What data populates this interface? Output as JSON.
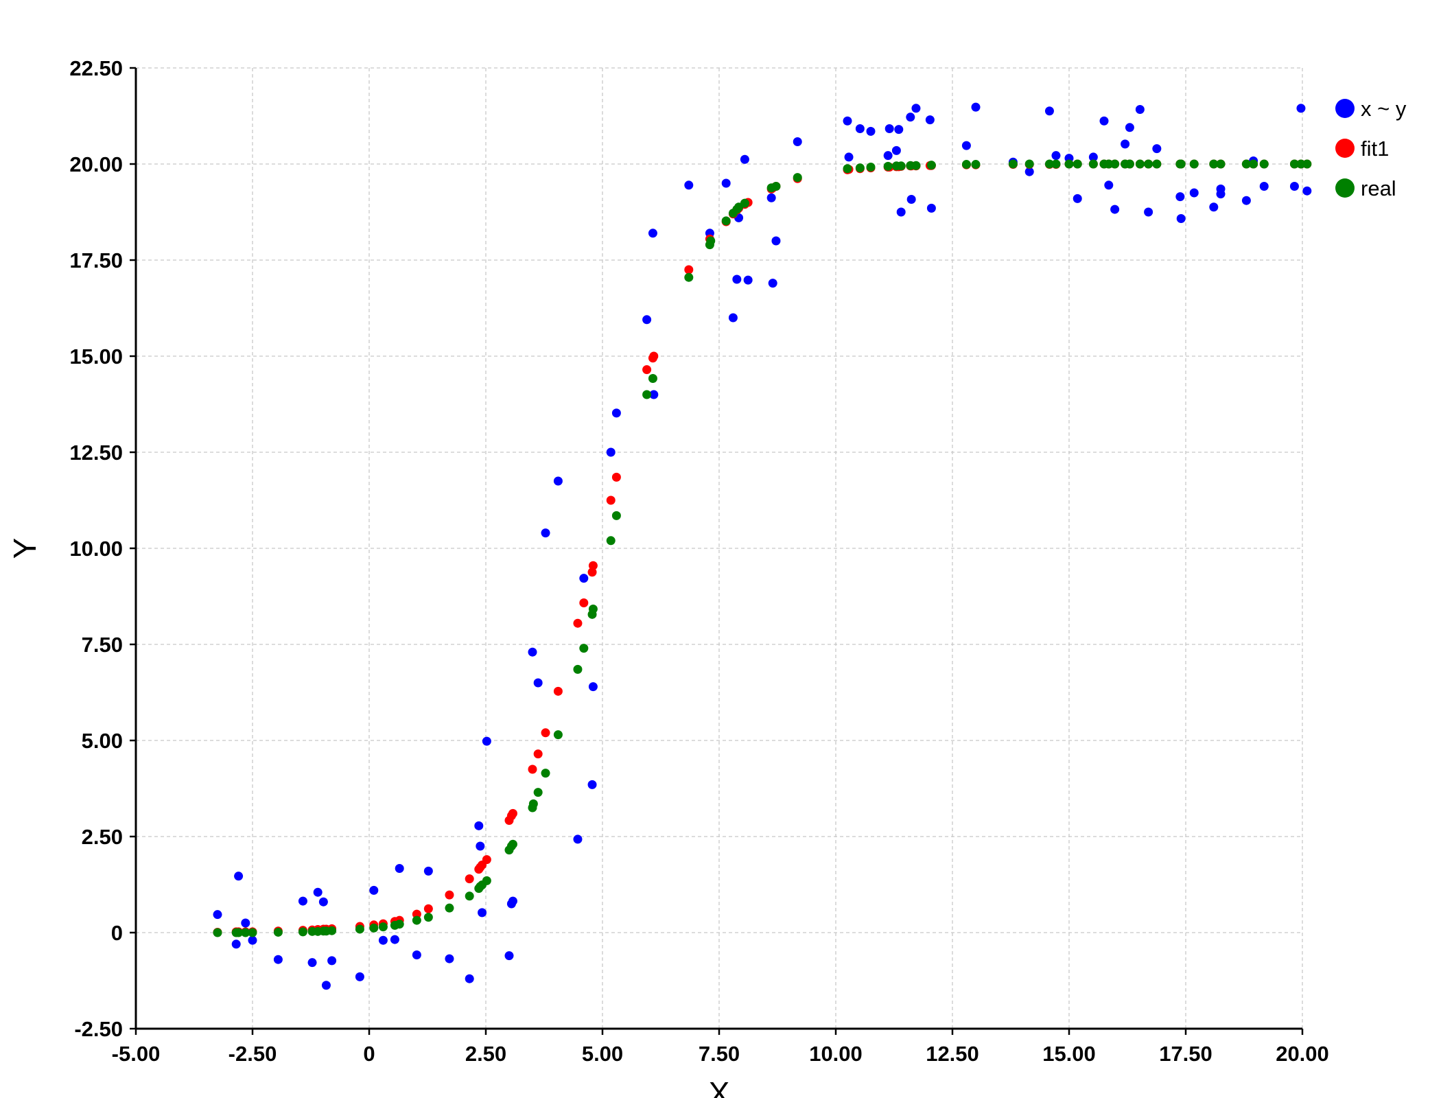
{
  "chart_data": {
    "type": "scatter",
    "title": "",
    "xlabel": "X",
    "ylabel": "Y",
    "xlim": [
      -5,
      20
    ],
    "ylim": [
      -2.5,
      22.5
    ],
    "xticks": [
      "-5.00",
      "-2.50",
      "0",
      "2.50",
      "5.00",
      "7.50",
      "10.00",
      "12.50",
      "15.00",
      "17.50",
      "20.00"
    ],
    "yticks": [
      "-2.50",
      "0",
      "2.50",
      "5.00",
      "7.50",
      "10.00",
      "12.50",
      "15.00",
      "17.50",
      "20.00",
      "22.50"
    ],
    "grid": true,
    "legend_position": "top-right, outside plot",
    "series": [
      {
        "name": "x ~ y",
        "color": "#0000ff",
        "points": [
          [
            -3.25,
            0.47
          ],
          [
            -2.85,
            -0.3
          ],
          [
            -2.8,
            1.47
          ],
          [
            -2.65,
            0.25
          ],
          [
            -2.5,
            -0.2
          ],
          [
            -1.95,
            -0.7
          ],
          [
            -1.42,
            0.82
          ],
          [
            -1.22,
            -0.78
          ],
          [
            -1.1,
            1.05
          ],
          [
            -0.98,
            0.8
          ],
          [
            -0.92,
            -1.37
          ],
          [
            -0.8,
            -0.73
          ],
          [
            -0.2,
            -1.15
          ],
          [
            0.1,
            1.1
          ],
          [
            0.3,
            -0.2
          ],
          [
            0.55,
            -0.18
          ],
          [
            0.65,
            1.67
          ],
          [
            1.02,
            -0.58
          ],
          [
            1.27,
            1.6
          ],
          [
            1.72,
            -0.68
          ],
          [
            2.15,
            -1.2
          ],
          [
            2.35,
            2.78
          ],
          [
            2.38,
            2.25
          ],
          [
            2.42,
            0.52
          ],
          [
            2.52,
            4.98
          ],
          [
            3.0,
            -0.6
          ],
          [
            3.05,
            0.75
          ],
          [
            3.08,
            0.82
          ],
          [
            3.5,
            7.3
          ],
          [
            3.62,
            6.5
          ],
          [
            3.78,
            10.4
          ],
          [
            4.05,
            11.75
          ],
          [
            4.47,
            2.43
          ],
          [
            4.6,
            9.22
          ],
          [
            4.78,
            3.85
          ],
          [
            4.8,
            6.4
          ],
          [
            5.18,
            12.5
          ],
          [
            5.3,
            13.52
          ],
          [
            5.95,
            15.95
          ],
          [
            6.1,
            14.0
          ],
          [
            6.08,
            18.2
          ],
          [
            6.85,
            19.45
          ],
          [
            7.3,
            18.2
          ],
          [
            7.65,
            19.5
          ],
          [
            7.8,
            16.0
          ],
          [
            7.88,
            17.0
          ],
          [
            7.92,
            18.6
          ],
          [
            8.05,
            20.12
          ],
          [
            8.12,
            16.98
          ],
          [
            8.62,
            19.12
          ],
          [
            8.65,
            16.9
          ],
          [
            8.72,
            18.0
          ],
          [
            9.18,
            20.58
          ],
          [
            10.25,
            21.12
          ],
          [
            10.28,
            20.18
          ],
          [
            10.52,
            20.92
          ],
          [
            10.75,
            20.85
          ],
          [
            11.15,
            20.92
          ],
          [
            11.12,
            20.22
          ],
          [
            11.35,
            20.9
          ],
          [
            11.3,
            20.35
          ],
          [
            11.4,
            18.75
          ],
          [
            11.6,
            21.22
          ],
          [
            11.62,
            19.08
          ],
          [
            11.72,
            21.45
          ],
          [
            12.02,
            21.15
          ],
          [
            12.05,
            18.85
          ],
          [
            12.8,
            20.48
          ],
          [
            13.0,
            21.48
          ],
          [
            13.8,
            20.05
          ],
          [
            14.15,
            19.8
          ],
          [
            14.58,
            21.38
          ],
          [
            14.72,
            20.22
          ],
          [
            15.0,
            20.15
          ],
          [
            15.18,
            19.1
          ],
          [
            15.52,
            20.18
          ],
          [
            15.75,
            21.12
          ],
          [
            15.85,
            19.45
          ],
          [
            15.98,
            18.82
          ],
          [
            16.2,
            20.52
          ],
          [
            16.3,
            20.95
          ],
          [
            16.52,
            21.42
          ],
          [
            16.7,
            18.75
          ],
          [
            16.88,
            20.4
          ],
          [
            17.38,
            19.15
          ],
          [
            17.4,
            18.58
          ],
          [
            17.68,
            19.25
          ],
          [
            18.1,
            18.88
          ],
          [
            18.25,
            19.22
          ],
          [
            18.25,
            19.35
          ],
          [
            18.8,
            19.05
          ],
          [
            18.95,
            20.08
          ],
          [
            19.18,
            19.42
          ],
          [
            19.83,
            19.42
          ],
          [
            19.97,
            21.45
          ],
          [
            20.1,
            19.3
          ]
        ]
      },
      {
        "name": "fit1",
        "color": "#ff0000",
        "points": [
          [
            -3.25,
            0.01
          ],
          [
            -2.85,
            0.02
          ],
          [
            -2.8,
            0.02
          ],
          [
            -2.65,
            0.02
          ],
          [
            -2.5,
            0.02
          ],
          [
            -1.95,
            0.04
          ],
          [
            -1.42,
            0.06
          ],
          [
            -1.22,
            0.07
          ],
          [
            -1.1,
            0.08
          ],
          [
            -0.98,
            0.09
          ],
          [
            -0.92,
            0.09
          ],
          [
            -0.8,
            0.1
          ],
          [
            -0.2,
            0.16
          ],
          [
            0.1,
            0.2
          ],
          [
            0.3,
            0.23
          ],
          [
            0.55,
            0.29
          ],
          [
            0.65,
            0.32
          ],
          [
            1.02,
            0.48
          ],
          [
            1.27,
            0.62
          ],
          [
            1.72,
            0.98
          ],
          [
            2.15,
            1.4
          ],
          [
            2.35,
            1.65
          ],
          [
            2.38,
            1.7
          ],
          [
            2.42,
            1.76
          ],
          [
            2.52,
            1.9
          ],
          [
            3.0,
            2.92
          ],
          [
            3.05,
            3.04
          ],
          [
            3.08,
            3.1
          ],
          [
            3.5,
            4.25
          ],
          [
            3.62,
            4.65
          ],
          [
            3.78,
            5.2
          ],
          [
            4.05,
            6.28
          ],
          [
            4.47,
            8.05
          ],
          [
            4.6,
            8.58
          ],
          [
            4.78,
            9.38
          ],
          [
            4.8,
            9.55
          ],
          [
            5.18,
            11.25
          ],
          [
            5.3,
            11.85
          ],
          [
            5.95,
            14.65
          ],
          [
            6.1,
            15.0
          ],
          [
            6.08,
            14.95
          ],
          [
            6.85,
            17.25
          ],
          [
            7.3,
            18.05
          ],
          [
            7.65,
            18.5
          ],
          [
            7.8,
            18.7
          ],
          [
            7.88,
            18.8
          ],
          [
            7.92,
            18.85
          ],
          [
            8.05,
            18.95
          ],
          [
            8.12,
            19.0
          ],
          [
            8.62,
            19.35
          ],
          [
            8.65,
            19.38
          ],
          [
            8.72,
            19.42
          ],
          [
            9.18,
            19.62
          ],
          [
            10.25,
            19.85
          ],
          [
            10.28,
            19.86
          ],
          [
            10.52,
            19.88
          ],
          [
            10.75,
            19.9
          ],
          [
            11.15,
            19.92
          ],
          [
            11.12,
            19.92
          ],
          [
            11.35,
            19.93
          ],
          [
            11.3,
            19.93
          ],
          [
            11.4,
            19.94
          ],
          [
            11.6,
            19.95
          ],
          [
            11.62,
            19.95
          ],
          [
            11.72,
            19.95
          ],
          [
            12.02,
            19.96
          ],
          [
            12.05,
            19.96
          ],
          [
            12.8,
            19.98
          ],
          [
            13.0,
            19.98
          ],
          [
            13.8,
            19.99
          ],
          [
            14.15,
            19.99
          ],
          [
            14.58,
            19.99
          ],
          [
            14.72,
            19.99
          ],
          [
            15.0,
            20.0
          ],
          [
            15.18,
            20.0
          ],
          [
            15.52,
            20.0
          ],
          [
            15.75,
            20.0
          ],
          [
            15.85,
            20.0
          ],
          [
            15.98,
            20.0
          ],
          [
            16.2,
            20.0
          ],
          [
            16.3,
            20.0
          ],
          [
            16.52,
            20.0
          ],
          [
            16.7,
            20.0
          ],
          [
            16.88,
            20.0
          ],
          [
            17.38,
            20.0
          ],
          [
            17.4,
            20.0
          ],
          [
            17.68,
            20.0
          ],
          [
            18.1,
            20.0
          ],
          [
            18.25,
            20.0
          ],
          [
            18.8,
            20.0
          ],
          [
            18.95,
            20.0
          ],
          [
            19.18,
            20.0
          ],
          [
            19.83,
            20.0
          ],
          [
            19.97,
            20.0
          ],
          [
            20.1,
            20.0
          ]
        ]
      },
      {
        "name": "real",
        "color": "#008000",
        "points": [
          [
            -3.25,
            0.0
          ],
          [
            -2.85,
            0.0
          ],
          [
            -2.8,
            0.0
          ],
          [
            -2.65,
            0.0
          ],
          [
            -2.5,
            0.0
          ],
          [
            -1.95,
            0.01
          ],
          [
            -1.42,
            0.02
          ],
          [
            -1.22,
            0.03
          ],
          [
            -1.1,
            0.03
          ],
          [
            -0.98,
            0.04
          ],
          [
            -0.92,
            0.04
          ],
          [
            -0.8,
            0.05
          ],
          [
            -0.2,
            0.09
          ],
          [
            0.1,
            0.12
          ],
          [
            0.3,
            0.15
          ],
          [
            0.55,
            0.19
          ],
          [
            0.65,
            0.22
          ],
          [
            1.02,
            0.32
          ],
          [
            1.27,
            0.4
          ],
          [
            1.72,
            0.64
          ],
          [
            2.15,
            0.95
          ],
          [
            2.35,
            1.15
          ],
          [
            2.38,
            1.2
          ],
          [
            2.42,
            1.24
          ],
          [
            2.52,
            1.35
          ],
          [
            3.0,
            2.15
          ],
          [
            3.05,
            2.25
          ],
          [
            3.08,
            2.3
          ],
          [
            3.5,
            3.25
          ],
          [
            3.52,
            3.35
          ],
          [
            3.62,
            3.65
          ],
          [
            3.78,
            4.15
          ],
          [
            4.05,
            5.15
          ],
          [
            4.47,
            6.85
          ],
          [
            4.6,
            7.4
          ],
          [
            4.78,
            8.28
          ],
          [
            4.8,
            8.42
          ],
          [
            5.18,
            10.2
          ],
          [
            5.3,
            10.85
          ],
          [
            5.95,
            14.0
          ],
          [
            6.08,
            14.42
          ],
          [
            6.85,
            17.05
          ],
          [
            7.3,
            17.9
          ],
          [
            7.32,
            18.0
          ],
          [
            7.65,
            18.52
          ],
          [
            7.8,
            18.72
          ],
          [
            7.88,
            18.82
          ],
          [
            7.92,
            18.88
          ],
          [
            8.05,
            18.98
          ],
          [
            8.62,
            19.38
          ],
          [
            8.72,
            19.42
          ],
          [
            9.18,
            19.65
          ],
          [
            10.25,
            19.88
          ],
          [
            10.52,
            19.9
          ],
          [
            10.75,
            19.92
          ],
          [
            11.12,
            19.94
          ],
          [
            11.3,
            19.95
          ],
          [
            11.4,
            19.95
          ],
          [
            11.6,
            19.96
          ],
          [
            11.72,
            19.96
          ],
          [
            12.05,
            19.97
          ],
          [
            12.8,
            19.99
          ],
          [
            13.0,
            19.99
          ],
          [
            13.8,
            20.0
          ],
          [
            14.15,
            20.0
          ],
          [
            14.58,
            20.0
          ],
          [
            14.72,
            20.0
          ],
          [
            15.0,
            20.0
          ],
          [
            15.18,
            20.0
          ],
          [
            15.52,
            20.0
          ],
          [
            15.75,
            20.0
          ],
          [
            15.85,
            20.0
          ],
          [
            15.98,
            20.0
          ],
          [
            16.2,
            20.0
          ],
          [
            16.3,
            20.0
          ],
          [
            16.52,
            20.0
          ],
          [
            16.7,
            20.0
          ],
          [
            16.88,
            20.0
          ],
          [
            17.38,
            20.0
          ],
          [
            17.4,
            20.0
          ],
          [
            17.68,
            20.0
          ],
          [
            18.1,
            20.0
          ],
          [
            18.25,
            20.0
          ],
          [
            18.8,
            20.0
          ],
          [
            18.95,
            20.0
          ],
          [
            19.18,
            20.0
          ],
          [
            19.83,
            20.0
          ],
          [
            19.97,
            20.0
          ],
          [
            20.1,
            20.0
          ]
        ]
      }
    ]
  }
}
